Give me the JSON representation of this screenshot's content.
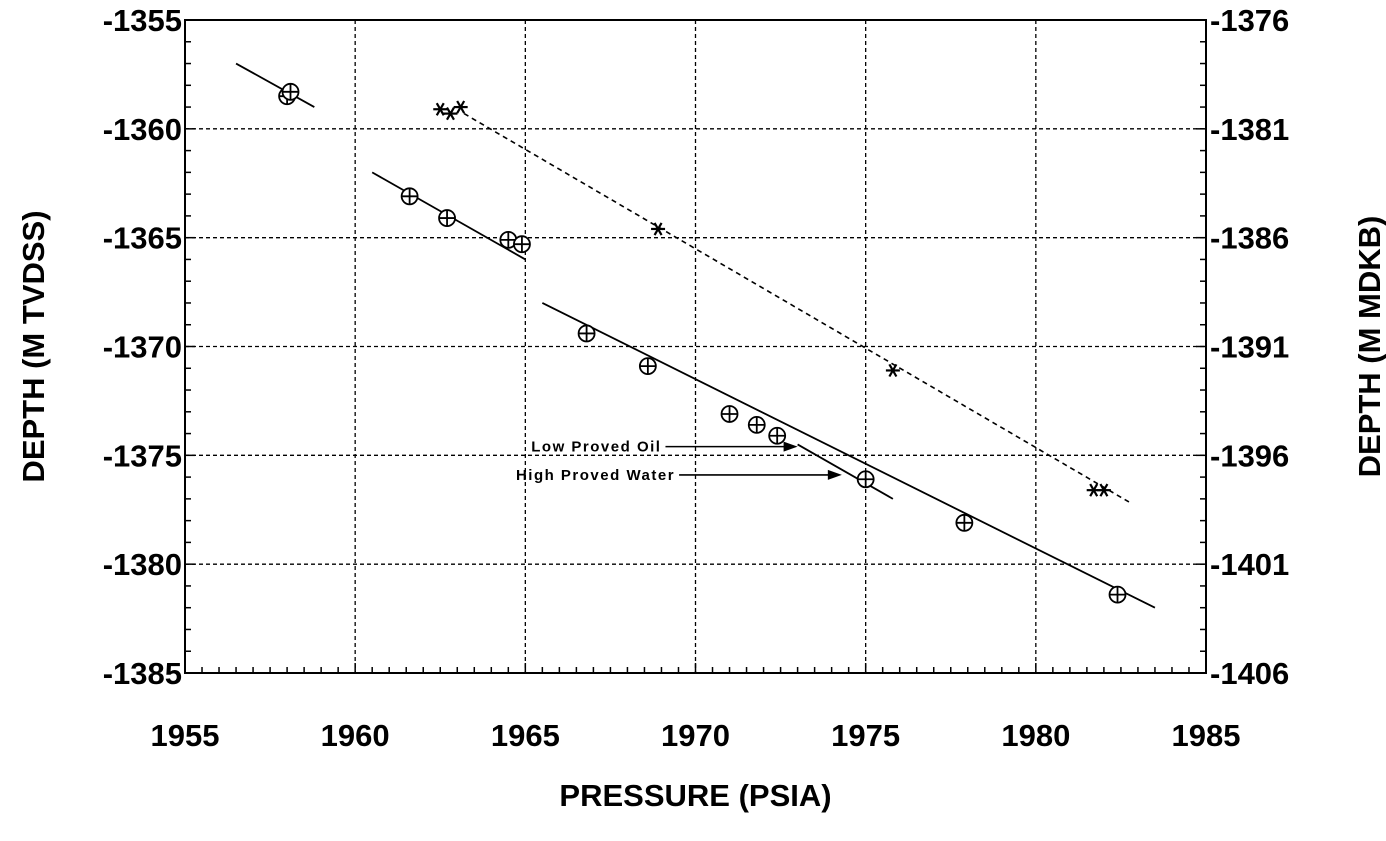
{
  "chart_data": {
    "type": "scatter",
    "title": "",
    "xlabel": "PRESSURE (PSIA)",
    "ylabel": "DEPTH (M TVDSS)",
    "y2label": "DEPTH (M MDKB)",
    "xlim": [
      1955,
      1985
    ],
    "ylim": [
      -1385,
      -1355
    ],
    "y2lim": [
      -1406,
      -1376
    ],
    "x_ticks": [
      "1955",
      "1960",
      "1965",
      "1970",
      "1975",
      "1980",
      "1985"
    ],
    "y_ticks": [
      "-1355",
      "-1360",
      "-1365",
      "-1370",
      "-1375",
      "-1380",
      "-1385"
    ],
    "y2_ticks": [
      "-1376",
      "-1381",
      "-1386",
      "-1391",
      "-1396",
      "-1401",
      "-1406"
    ],
    "grid": true,
    "series": [
      {
        "marker": "circle-plus",
        "points": [
          [
            1958.0,
            -1358.5
          ],
          [
            1958.1,
            -1358.3
          ],
          [
            1961.6,
            -1363.1
          ],
          [
            1962.7,
            -1364.1
          ],
          [
            1964.5,
            -1365.1
          ],
          [
            1964.9,
            -1365.3
          ],
          [
            1966.8,
            -1369.4
          ],
          [
            1968.6,
            -1370.9
          ],
          [
            1971.0,
            -1373.1
          ],
          [
            1971.8,
            -1373.6
          ],
          [
            1972.4,
            -1374.1
          ],
          [
            1975.0,
            -1376.1
          ],
          [
            1977.9,
            -1378.1
          ],
          [
            1982.4,
            -1381.4
          ]
        ]
      },
      {
        "marker": "star",
        "points": [
          [
            1962.5,
            -1359.1
          ],
          [
            1962.8,
            -1359.3
          ],
          [
            1963.1,
            -1359.0
          ],
          [
            1968.9,
            -1364.6
          ],
          [
            1975.8,
            -1371.1
          ],
          [
            1981.7,
            -1376.6
          ],
          [
            1982.0,
            -1376.6
          ]
        ]
      }
    ],
    "fit_lines": [
      {
        "style": "solid",
        "from": [
          1956.5,
          -1357.0
        ],
        "to": [
          1958.8,
          -1359.0
        ]
      },
      {
        "style": "solid",
        "from": [
          1960.5,
          -1362.0
        ],
        "to": [
          1965.0,
          -1366.0
        ]
      },
      {
        "style": "solid",
        "from": [
          1965.5,
          -1368.0
        ],
        "to": [
          1983.5,
          -1382.0
        ]
      },
      {
        "style": "solid",
        "from": [
          1973.0,
          -1374.5
        ],
        "to": [
          1975.8,
          -1377.0
        ]
      },
      {
        "style": "dashed",
        "from": [
          1963.2,
          -1359.3
        ],
        "to": [
          1982.8,
          -1377.2
        ]
      }
    ],
    "annotations": [
      {
        "text": "Low Proved Oil",
        "label_at": [
          1969.0,
          -1374.6
        ],
        "arrow_to": [
          1973.0,
          -1374.6
        ]
      },
      {
        "text": "High Proved Water",
        "label_at": [
          1969.4,
          -1375.9
        ],
        "arrow_to": [
          1974.3,
          -1375.9
        ]
      }
    ]
  }
}
